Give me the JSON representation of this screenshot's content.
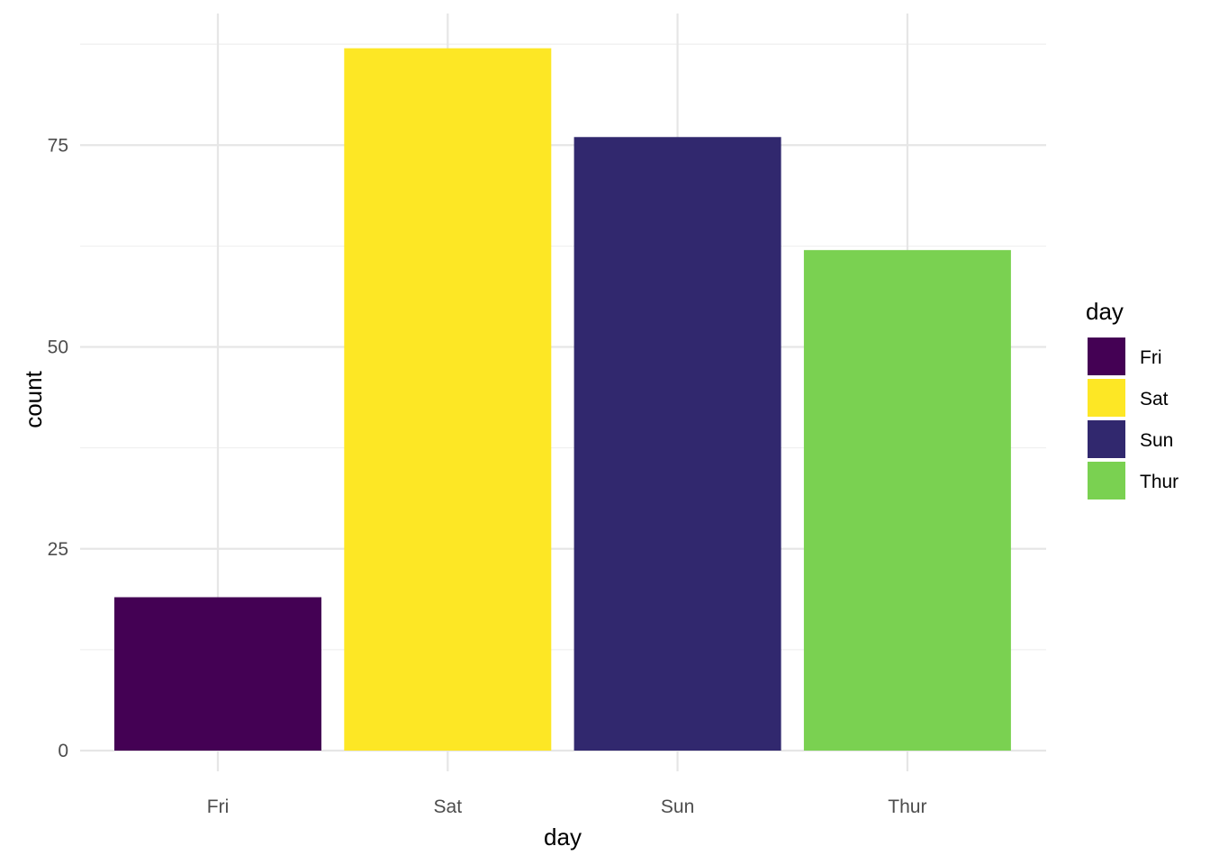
{
  "chart_data": {
    "type": "bar",
    "categories": [
      "Fri",
      "Sat",
      "Sun",
      "Thur"
    ],
    "values": [
      19,
      87,
      76,
      62
    ],
    "colors": [
      "#440154",
      "#FDE725",
      "#31286E",
      "#7AD151"
    ],
    "xlabel": "day",
    "ylabel": "count",
    "ylim": [
      0,
      90
    ],
    "yticks": [
      0,
      25,
      50,
      75
    ],
    "grid": true,
    "legend": {
      "title": "day",
      "placement": "right",
      "entries": [
        "Fri",
        "Sat",
        "Sun",
        "Thur"
      ]
    }
  }
}
